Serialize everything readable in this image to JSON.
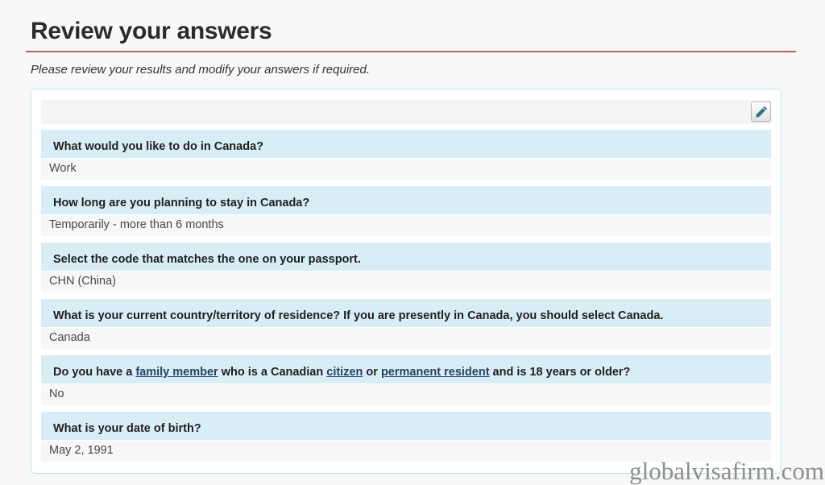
{
  "page": {
    "title": "Review your answers",
    "subtitle": "Please review your results and modify your answers if required.",
    "watermark": "globalvisafirm.com"
  },
  "toolbar": {
    "edit_icon": "pencil-icon"
  },
  "colors": {
    "page_background": "#f8f8f8",
    "title_rule_red": "#b56265",
    "panel_border_blue": "#bce3f3",
    "question_row_blue": "#d9edf7",
    "answer_row_gray": "#f7f7f7",
    "toolbar_row_gray": "#f5f5f5",
    "link_navy": "#284162",
    "pencil_blue": "#31708f",
    "watermark_gray": "#8e8e8e"
  },
  "qa": {
    "items": [
      {
        "question": [
          {
            "text": "What would you like to do in Canada?"
          }
        ],
        "answer": "Work"
      },
      {
        "question": [
          {
            "text": "How long are you planning to stay in Canada?"
          }
        ],
        "answer": "Temporarily - more than 6 months"
      },
      {
        "question": [
          {
            "text": "Select the code that matches the one on your passport."
          }
        ],
        "answer": "CHN (China)"
      },
      {
        "question": [
          {
            "text": "What is your current country/territory of residence? If you are presently in Canada, you should select Canada."
          }
        ],
        "answer": "Canada"
      },
      {
        "question": [
          {
            "text": "Do you have a "
          },
          {
            "text": "family member",
            "link": true
          },
          {
            "text": " who is a Canadian "
          },
          {
            "text": "citizen",
            "link": true
          },
          {
            "text": " or "
          },
          {
            "text": "permanent resident",
            "link": true
          },
          {
            "text": " and is 18 years or older?"
          }
        ],
        "answer": "No"
      },
      {
        "question": [
          {
            "text": "What is your date of birth?"
          }
        ],
        "answer": "May 2, 1991"
      }
    ]
  }
}
